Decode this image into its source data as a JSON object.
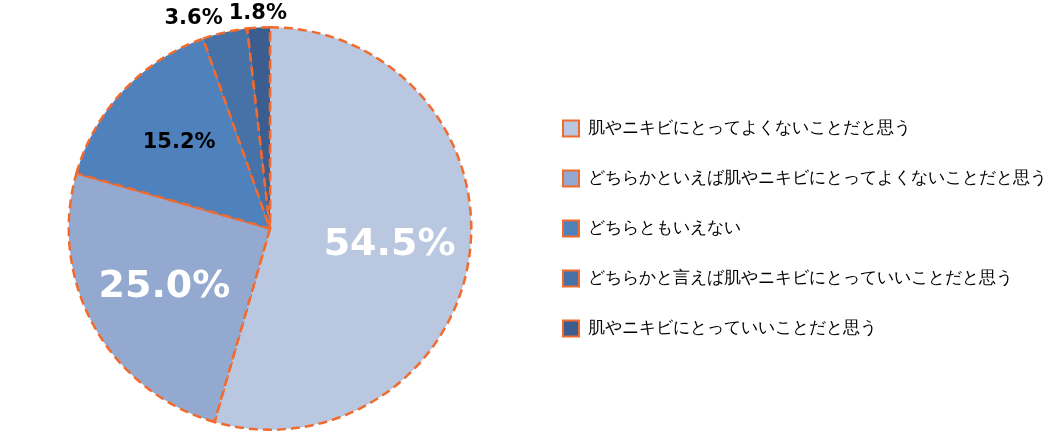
{
  "chart_data": {
    "type": "pie",
    "categories": [
      "肌やニキビにとってよくないことだと思う",
      "どちらかといえば肌やニキビにとってよくないことだと思う",
      "どちらともいえない",
      "どちらかと言えば肌やニキビにとっていいことだと思う",
      "肌やニキビにとっていいことだと思う"
    ],
    "values": [
      54.5,
      25.0,
      15.2,
      3.6,
      1.8
    ],
    "colors": [
      "#b9c7e0",
      "#93a9d0",
      "#4f81bd",
      "#4672a8",
      "#3b5d8f"
    ],
    "value_labels": [
      "54.5%",
      "25.0%",
      "15.2%",
      "3.6%",
      "1.8%"
    ],
    "legend": "right"
  }
}
